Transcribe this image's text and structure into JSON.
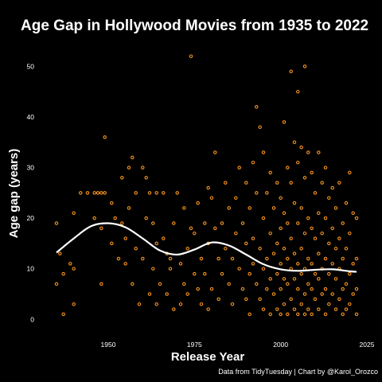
{
  "chart_data": {
    "type": "scatter",
    "title": "Age Gap in Hollywood Movies from 1935 to 2022",
    "xlabel": "Release Year",
    "ylabel": "Age gap (years)",
    "caption": "Data from TidyTuesday | Chart by @Karol_Orozco",
    "xlim": [
      1929,
      2025
    ],
    "ylim": [
      -2,
      54
    ],
    "x_ticks": [
      1950,
      1975,
      2000,
      2025
    ],
    "y_ticks": [
      0,
      10,
      20,
      30,
      40,
      50
    ],
    "grid": false,
    "legend": "none",
    "colors": {
      "background": "#000000",
      "points": "#f7941d",
      "smooth_line": "#ffffff",
      "text": "#ffffff"
    },
    "series": [
      {
        "type": "scatter",
        "points": [
          [
            1935,
            19
          ],
          [
            1935,
            7
          ],
          [
            1936,
            13
          ],
          [
            1937,
            1
          ],
          [
            1937,
            9
          ],
          [
            1939,
            11
          ],
          [
            1940,
            21
          ],
          [
            1940,
            3
          ],
          [
            1940,
            10
          ],
          [
            1942,
            25
          ],
          [
            1944,
            25
          ],
          [
            1946,
            25
          ],
          [
            1946,
            20
          ],
          [
            1947,
            25
          ],
          [
            1948,
            25
          ],
          [
            1948,
            18
          ],
          [
            1948,
            7
          ],
          [
            1949,
            36
          ],
          [
            1949,
            25
          ],
          [
            1951,
            23
          ],
          [
            1951,
            15
          ],
          [
            1952,
            20
          ],
          [
            1953,
            12
          ],
          [
            1954,
            28
          ],
          [
            1954,
            19
          ],
          [
            1955,
            16
          ],
          [
            1955,
            11
          ],
          [
            1956,
            30
          ],
          [
            1956,
            22
          ],
          [
            1957,
            32
          ],
          [
            1957,
            7
          ],
          [
            1958,
            25
          ],
          [
            1958,
            14
          ],
          [
            1959,
            3
          ],
          [
            1960,
            30
          ],
          [
            1960,
            12
          ],
          [
            1961,
            28
          ],
          [
            1961,
            20
          ],
          [
            1962,
            25
          ],
          [
            1962,
            5
          ],
          [
            1963,
            19
          ],
          [
            1963,
            10
          ],
          [
            1964,
            25
          ],
          [
            1964,
            15
          ],
          [
            1964,
            3
          ],
          [
            1965,
            7
          ],
          [
            1966,
            16
          ],
          [
            1966,
            25
          ],
          [
            1967,
            13
          ],
          [
            1967,
            5
          ],
          [
            1968,
            10
          ],
          [
            1968,
            12
          ],
          [
            1969,
            19
          ],
          [
            1969,
            2
          ],
          [
            1970,
            25
          ],
          [
            1971,
            11
          ],
          [
            1971,
            3
          ],
          [
            1972,
            22
          ],
          [
            1972,
            7
          ],
          [
            1973,
            14
          ],
          [
            1973,
            5
          ],
          [
            1974,
            52
          ],
          [
            1974,
            18
          ],
          [
            1975,
            17
          ],
          [
            1975,
            9
          ],
          [
            1976,
            23
          ],
          [
            1976,
            6
          ],
          [
            1977,
            3
          ],
          [
            1977,
            12
          ],
          [
            1978,
            19
          ],
          [
            1978,
            9
          ],
          [
            1979,
            26
          ],
          [
            1979,
            15
          ],
          [
            1979,
            2
          ],
          [
            1980,
            24
          ],
          [
            1980,
            6
          ],
          [
            1981,
            33
          ],
          [
            1981,
            18
          ],
          [
            1982,
            12
          ],
          [
            1982,
            4
          ],
          [
            1983,
            19
          ],
          [
            1983,
            9
          ],
          [
            1984,
            27
          ],
          [
            1984,
            14
          ],
          [
            1985,
            22
          ],
          [
            1985,
            7
          ],
          [
            1986,
            12
          ],
          [
            1986,
            3
          ],
          [
            1987,
            24
          ],
          [
            1987,
            17
          ],
          [
            1988,
            30
          ],
          [
            1988,
            10
          ],
          [
            1989,
            19
          ],
          [
            1989,
            6
          ],
          [
            1990,
            15
          ],
          [
            1990,
            27
          ],
          [
            1990,
            4
          ],
          [
            1991,
            22
          ],
          [
            1991,
            9
          ],
          [
            1991,
            1
          ],
          [
            1992,
            31
          ],
          [
            1992,
            16
          ],
          [
            1992,
            11
          ],
          [
            1993,
            42
          ],
          [
            1993,
            25
          ],
          [
            1993,
            7
          ],
          [
            1994,
            38
          ],
          [
            1994,
            14
          ],
          [
            1994,
            4
          ],
          [
            1995,
            33
          ],
          [
            1995,
            20
          ],
          [
            1995,
            10
          ],
          [
            1995,
            2
          ],
          [
            1996,
            25
          ],
          [
            1996,
            12
          ],
          [
            1996,
            6
          ],
          [
            1997,
            29
          ],
          [
            1997,
            17
          ],
          [
            1997,
            8
          ],
          [
            1997,
            1
          ],
          [
            1998,
            22
          ],
          [
            1998,
            13
          ],
          [
            1998,
            5
          ],
          [
            1999,
            27
          ],
          [
            1999,
            15
          ],
          [
            1999,
            9
          ],
          [
            1999,
            2
          ],
          [
            2000,
            24
          ],
          [
            2000,
            18
          ],
          [
            2000,
            11
          ],
          [
            2000,
            6
          ],
          [
            2000,
            1
          ],
          [
            2001,
            39
          ],
          [
            2001,
            21
          ],
          [
            2001,
            14
          ],
          [
            2001,
            8
          ],
          [
            2001,
            3
          ],
          [
            2002,
            30
          ],
          [
            2002,
            19
          ],
          [
            2002,
            12
          ],
          [
            2002,
            7
          ],
          [
            2002,
            1
          ],
          [
            2003,
            49
          ],
          [
            2003,
            27
          ],
          [
            2003,
            16
          ],
          [
            2003,
            10
          ],
          [
            2003,
            4
          ],
          [
            2004,
            35
          ],
          [
            2004,
            23
          ],
          [
            2004,
            13
          ],
          [
            2004,
            8
          ],
          [
            2004,
            2
          ],
          [
            2005,
            45
          ],
          [
            2005,
            31
          ],
          [
            2005,
            19
          ],
          [
            2005,
            11
          ],
          [
            2005,
            6
          ],
          [
            2005,
            1
          ],
          [
            2006,
            34
          ],
          [
            2006,
            22
          ],
          [
            2006,
            14
          ],
          [
            2006,
            9
          ],
          [
            2006,
            3
          ],
          [
            2007,
            50
          ],
          [
            2007,
            28
          ],
          [
            2007,
            17
          ],
          [
            2007,
            10
          ],
          [
            2007,
            5
          ],
          [
            2007,
            1
          ],
          [
            2008,
            33
          ],
          [
            2008,
            20
          ],
          [
            2008,
            12
          ],
          [
            2008,
            7
          ],
          [
            2008,
            2
          ],
          [
            2009,
            29
          ],
          [
            2009,
            18
          ],
          [
            2009,
            11
          ],
          [
            2009,
            6
          ],
          [
            2009,
            1
          ],
          [
            2010,
            25
          ],
          [
            2010,
            16
          ],
          [
            2010,
            9
          ],
          [
            2010,
            4
          ],
          [
            2011,
            33
          ],
          [
            2011,
            21
          ],
          [
            2011,
            13
          ],
          [
            2011,
            8
          ],
          [
            2011,
            2
          ],
          [
            2012,
            27
          ],
          [
            2012,
            17
          ],
          [
            2012,
            10
          ],
          [
            2012,
            5
          ],
          [
            2013,
            30
          ],
          [
            2013,
            20
          ],
          [
            2013,
            12
          ],
          [
            2013,
            6
          ],
          [
            2013,
            1
          ],
          [
            2014,
            24
          ],
          [
            2014,
            15
          ],
          [
            2014,
            9
          ],
          [
            2014,
            3
          ],
          [
            2015,
            26
          ],
          [
            2015,
            18
          ],
          [
            2015,
            11
          ],
          [
            2015,
            5
          ],
          [
            2016,
            22
          ],
          [
            2016,
            14
          ],
          [
            2016,
            8
          ],
          [
            2016,
            2
          ],
          [
            2017,
            27
          ],
          [
            2017,
            16
          ],
          [
            2017,
            10
          ],
          [
            2017,
            4
          ],
          [
            2018,
            19
          ],
          [
            2018,
            12
          ],
          [
            2018,
            6
          ],
          [
            2018,
            1
          ],
          [
            2019,
            23
          ],
          [
            2019,
            14
          ],
          [
            2019,
            7
          ],
          [
            2019,
            2
          ],
          [
            2020,
            29
          ],
          [
            2020,
            17
          ],
          [
            2020,
            9
          ],
          [
            2020,
            3
          ],
          [
            2021,
            21
          ],
          [
            2021,
            11
          ],
          [
            2021,
            5
          ],
          [
            2022,
            20
          ],
          [
            2022,
            12
          ],
          [
            2022,
            6
          ],
          [
            2022,
            1
          ]
        ]
      },
      {
        "type": "smooth",
        "x": [
          1935,
          1940,
          1945,
          1950,
          1955,
          1960,
          1965,
          1970,
          1975,
          1980,
          1985,
          1990,
          1995,
          2000,
          2005,
          2010,
          2015,
          2020,
          2022
        ],
        "values": [
          13.2,
          16.0,
          18.4,
          19.0,
          18.2,
          16.0,
          13.6,
          12.8,
          13.8,
          15.2,
          14.6,
          12.8,
          10.9,
          9.9,
          9.6,
          9.8,
          9.9,
          9.5,
          9.4
        ]
      }
    ]
  }
}
